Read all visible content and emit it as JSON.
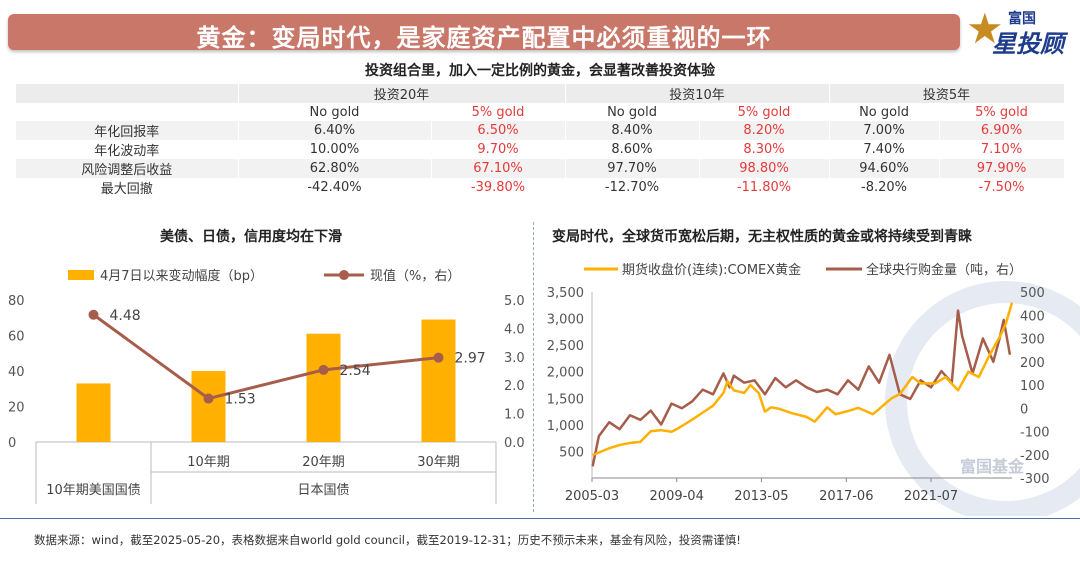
{
  "header": {
    "title": "黄金：变局时代，是家庭资产配置中必须重视的一环"
  },
  "logo": {
    "top_text": "富国",
    "big_text": "星投顾"
  },
  "table_title": "投资组合里，加入一定比例的黄金，会显著改善投资体验",
  "perf_table": {
    "groups": [
      "投资20年",
      "投资10年",
      "投资5年"
    ],
    "subheaders": [
      "No gold",
      "5% gold",
      "No gold",
      "5% gold",
      "No gold",
      "5% gold"
    ],
    "rows": [
      {
        "label": "年化回报率",
        "values": [
          "6.40%",
          "6.50%",
          "8.40%",
          "8.20%",
          "7.00%",
          "6.90%"
        ]
      },
      {
        "label": "年化波动率",
        "values": [
          "10.00%",
          "9.70%",
          "8.60%",
          "8.30%",
          "7.40%",
          "7.10%"
        ]
      },
      {
        "label": "风险调整后收益",
        "values": [
          "62.80%",
          "67.10%",
          "97.70%",
          "98.80%",
          "94.60%",
          "97.90%"
        ]
      },
      {
        "label": "最大回撤",
        "values": [
          "-42.40%",
          "-39.80%",
          "-12.70%",
          "-11.80%",
          "-8.20%",
          "-7.50%"
        ]
      }
    ]
  },
  "footnote": "数据来源：wind，截至2025-05-20，表格数据来自world gold council，截至2019-12-31；历史不预示未来，基金有风险，投资需谨慎!",
  "colors": {
    "gold": "#ffb000",
    "brown": "#a65d4b",
    "accent": "#c97768"
  },
  "chart_data": [
    {
      "type": "bar",
      "title": "美债、日债，信用度均在下滑",
      "categories": [
        "10年期美国国债",
        "10年期",
        "20年期",
        "30年期"
      ],
      "group_label": "日本国债",
      "series": [
        {
          "name": "4月7日以来变动幅度（bp）",
          "type": "bar",
          "axis": "left",
          "values": [
            33,
            40,
            61,
            69
          ]
        },
        {
          "name": "现值（%，右）",
          "type": "line",
          "axis": "right",
          "values": [
            4.48,
            1.53,
            2.54,
            2.97
          ]
        }
      ],
      "point_labels": [
        "4.48",
        "1.53",
        "2.54",
        "2.97"
      ],
      "ylim_left": [
        0,
        80
      ],
      "yticks_left": [
        "0",
        "20",
        "40",
        "60",
        "80"
      ],
      "ylim_right": [
        0,
        5
      ],
      "yticks_right": [
        "0.0",
        "1.0",
        "2.0",
        "3.0",
        "4.0",
        "5.0"
      ],
      "legend": "top"
    },
    {
      "type": "line",
      "title": "变局时代，全球货币宽松后期，无主权性质的黄金或将持续受到青睐",
      "x_ticks": [
        "2005-03",
        "2009-04",
        "2013-05",
        "2017-06",
        "2021-07"
      ],
      "x_range": [
        2005.17,
        2025.4
      ],
      "yticks_left": [
        "500",
        "1,000",
        "1,500",
        "2,000",
        "2,500",
        "3,000",
        "3,500"
      ],
      "ylim_left": [
        0,
        3500
      ],
      "yticks_right": [
        "-300",
        "-200",
        "-100",
        "0",
        "100",
        "200",
        "300",
        "400",
        "500"
      ],
      "ylim_right": [
        -300,
        500
      ],
      "legend": "top",
      "series": [
        {
          "name": "期货收盘价(连续):COMEX黄金",
          "axis": "left",
          "x": [
            2005.2,
            2006.0,
            2006.5,
            2007.0,
            2007.5,
            2008.0,
            2008.5,
            2009.0,
            2009.3,
            2010.0,
            2010.5,
            2011.0,
            2011.5,
            2011.7,
            2012.0,
            2012.5,
            2012.8,
            2013.2,
            2013.5,
            2013.8,
            2014.2,
            2014.8,
            2015.5,
            2015.9,
            2016.5,
            2016.9,
            2017.5,
            2018.0,
            2018.7,
            2019.0,
            2019.6,
            2020.0,
            2020.6,
            2021.0,
            2021.7,
            2022.2,
            2022.8,
            2023.3,
            2023.8,
            2024.3,
            2024.8,
            2025.1,
            2025.4
          ],
          "y": [
            430,
            560,
            620,
            660,
            680,
            880,
            900,
            870,
            930,
            1100,
            1230,
            1360,
            1600,
            1820,
            1650,
            1600,
            1750,
            1600,
            1250,
            1330,
            1300,
            1220,
            1150,
            1060,
            1330,
            1200,
            1260,
            1320,
            1200,
            1300,
            1500,
            1580,
            1900,
            1780,
            1780,
            1900,
            1650,
            2000,
            1900,
            2300,
            2650,
            2900,
            3300
          ]
        },
        {
          "name": "全球央行购金量（吨，右）",
          "axis": "right",
          "x": [
            2005.2,
            2005.5,
            2006.0,
            2006.5,
            2007.0,
            2007.5,
            2008.0,
            2008.5,
            2009.0,
            2009.5,
            2010.0,
            2010.5,
            2011.0,
            2011.5,
            2011.8,
            2012.0,
            2012.5,
            2013.0,
            2013.5,
            2014.0,
            2014.5,
            2015.0,
            2015.5,
            2016.0,
            2016.5,
            2017.0,
            2017.5,
            2018.0,
            2018.5,
            2019.0,
            2019.5,
            2020.0,
            2020.5,
            2021.0,
            2021.5,
            2022.0,
            2022.5,
            2022.8,
            2023.0,
            2023.5,
            2024.0,
            2024.5,
            2024.8,
            2025.0,
            2025.3
          ],
          "y": [
            -250,
            -120,
            -60,
            -90,
            -30,
            -50,
            -10,
            -70,
            20,
            0,
            30,
            80,
            60,
            150,
            90,
            140,
            110,
            120,
            60,
            130,
            90,
            120,
            90,
            70,
            80,
            60,
            120,
            80,
            180,
            110,
            230,
            60,
            40,
            120,
            90,
            160,
            110,
            420,
            310,
            150,
            300,
            200,
            300,
            380,
            230
          ]
        }
      ]
    }
  ],
  "watermark": "富国基金"
}
